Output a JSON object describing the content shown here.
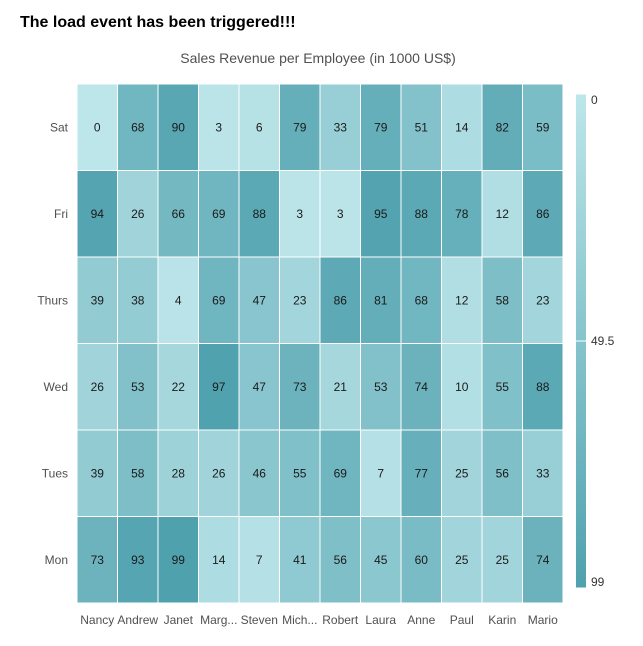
{
  "message": "The load event has been triggered!!!",
  "chart_data": {
    "type": "heatmap",
    "title": "Sales Revenue per Employee (in 1000 US$)",
    "x_categories": [
      "Nancy",
      "Andrew",
      "Janet",
      "Marg...",
      "Steven",
      "Mich...",
      "Robert",
      "Laura",
      "Anne",
      "Paul",
      "Karin",
      "Mario"
    ],
    "y_categories": [
      "Sat",
      "Fri",
      "Thurs",
      "Wed",
      "Tues",
      "Mon"
    ],
    "values": [
      [
        0,
        68,
        90,
        3,
        6,
        79,
        33,
        79,
        51,
        14,
        82,
        59
      ],
      [
        94,
        26,
        66,
        69,
        88,
        3,
        3,
        95,
        88,
        78,
        12,
        86
      ],
      [
        39,
        38,
        4,
        69,
        47,
        23,
        86,
        81,
        68,
        12,
        58,
        23
      ],
      [
        26,
        53,
        22,
        97,
        47,
        73,
        21,
        53,
        74,
        10,
        55,
        88
      ],
      [
        39,
        58,
        28,
        26,
        46,
        55,
        69,
        7,
        77,
        25,
        56,
        33
      ],
      [
        73,
        93,
        99,
        14,
        7,
        41,
        56,
        45,
        60,
        25,
        25,
        74
      ]
    ],
    "color_range": {
      "min": 0,
      "max": 99,
      "min_color": "#bde6ea",
      "max_color": "#4fa1ae"
    },
    "legend": {
      "position": "right",
      "labels": [
        "0",
        "49.5",
        "99"
      ]
    },
    "cell_border_color": "#ffffff",
    "cell_text_color": "#1a1a1a"
  }
}
